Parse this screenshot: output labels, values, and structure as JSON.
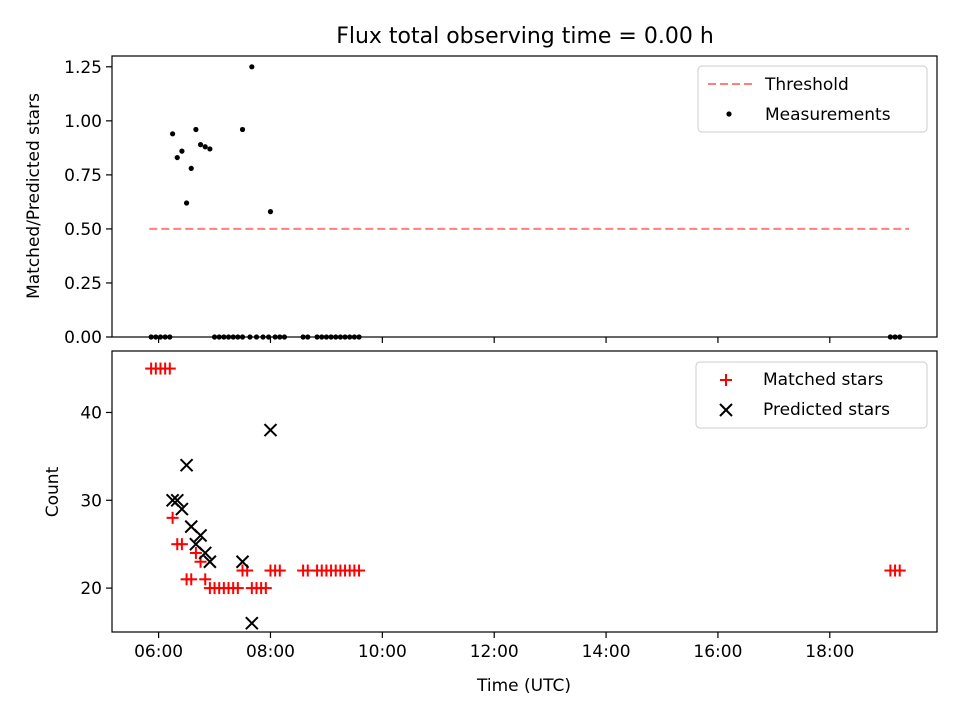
{
  "chart_data": [
    {
      "type": "scatter",
      "title": "Flux total observing time = 0.00 h",
      "xlabel": "",
      "ylabel": "Matched/Predicted stars",
      "xlim": [
        "05:10",
        "19:55"
      ],
      "ylim": [
        0,
        1.3
      ],
      "yticks": [
        "0.00",
        "0.25",
        "0.50",
        "0.75",
        "1.00",
        "1.25"
      ],
      "legend_position": "top-right",
      "series": [
        {
          "name": "Threshold",
          "kind": "line",
          "style": "dashed",
          "color": "#ff7f7f",
          "x": [
            "05:50",
            "19:25"
          ],
          "y": [
            0.5,
            0.5
          ]
        },
        {
          "name": "Measurements",
          "kind": "scatter",
          "color": "#000000",
          "points": [
            [
              "05:52",
              0
            ],
            [
              "05:57",
              0
            ],
            [
              "06:02",
              0
            ],
            [
              "06:07",
              0
            ],
            [
              "06:12",
              0
            ],
            [
              "06:15",
              0.94
            ],
            [
              "06:20",
              0.83
            ],
            [
              "06:25",
              0.86
            ],
            [
              "06:30",
              0.62
            ],
            [
              "06:35",
              0.78
            ],
            [
              "06:40",
              0.96
            ],
            [
              "06:45",
              0.89
            ],
            [
              "06:50",
              0.88
            ],
            [
              "06:55",
              0.87
            ],
            [
              "07:00",
              0
            ],
            [
              "07:05",
              0
            ],
            [
              "07:10",
              0
            ],
            [
              "07:15",
              0
            ],
            [
              "07:20",
              0
            ],
            [
              "07:25",
              0
            ],
            [
              "07:30",
              0
            ],
            [
              "07:30",
              0.96
            ],
            [
              "07:38",
              0
            ],
            [
              "07:45",
              0
            ],
            [
              "07:40",
              1.25
            ],
            [
              "07:52",
              0
            ],
            [
              "07:58",
              0
            ],
            [
              "08:00",
              0.58
            ],
            [
              "08:05",
              0
            ],
            [
              "08:10",
              0
            ],
            [
              "08:15",
              0
            ],
            [
              "08:35",
              0
            ],
            [
              "08:40",
              0
            ],
            [
              "08:50",
              0
            ],
            [
              "08:55",
              0
            ],
            [
              "09:00",
              0
            ],
            [
              "09:05",
              0
            ],
            [
              "09:10",
              0
            ],
            [
              "09:15",
              0
            ],
            [
              "09:20",
              0
            ],
            [
              "09:25",
              0
            ],
            [
              "09:30",
              0
            ],
            [
              "09:35",
              0
            ],
            [
              "19:05",
              0
            ],
            [
              "19:10",
              0
            ],
            [
              "19:15",
              0
            ]
          ]
        }
      ]
    },
    {
      "type": "scatter",
      "title": "",
      "xlabel": "Time (UTC)",
      "ylabel": "Count",
      "xlim": [
        "05:10",
        "19:55"
      ],
      "ylim": [
        15,
        47
      ],
      "xticks": [
        "06:00",
        "08:00",
        "10:00",
        "12:00",
        "14:00",
        "16:00",
        "18:00"
      ],
      "yticks": [
        "20",
        "30",
        "40"
      ],
      "legend_position": "top-right",
      "series": [
        {
          "name": "Matched stars",
          "marker": "plus",
          "color": "#ff0000",
          "points": [
            [
              "05:52",
              45
            ],
            [
              "05:57",
              45
            ],
            [
              "06:02",
              45
            ],
            [
              "06:07",
              45
            ],
            [
              "06:12",
              45
            ],
            [
              "06:15",
              28
            ],
            [
              "06:20",
              25
            ],
            [
              "06:25",
              25
            ],
            [
              "06:30",
              21
            ],
            [
              "06:35",
              21
            ],
            [
              "06:40",
              24
            ],
            [
              "06:45",
              23
            ],
            [
              "06:50",
              21
            ],
            [
              "06:55",
              20
            ],
            [
              "07:00",
              20
            ],
            [
              "07:05",
              20
            ],
            [
              "07:10",
              20
            ],
            [
              "07:15",
              20
            ],
            [
              "07:20",
              20
            ],
            [
              "07:25",
              20
            ],
            [
              "07:30",
              22
            ],
            [
              "07:35",
              22
            ],
            [
              "07:40",
              20
            ],
            [
              "07:45",
              20
            ],
            [
              "07:50",
              20
            ],
            [
              "07:55",
              20
            ],
            [
              "08:00",
              22
            ],
            [
              "08:05",
              22
            ],
            [
              "08:10",
              22
            ],
            [
              "08:35",
              22
            ],
            [
              "08:40",
              22
            ],
            [
              "08:50",
              22
            ],
            [
              "08:55",
              22
            ],
            [
              "09:00",
              22
            ],
            [
              "09:05",
              22
            ],
            [
              "09:10",
              22
            ],
            [
              "09:15",
              22
            ],
            [
              "09:20",
              22
            ],
            [
              "09:25",
              22
            ],
            [
              "09:30",
              22
            ],
            [
              "09:35",
              22
            ],
            [
              "19:05",
              22
            ],
            [
              "19:10",
              22
            ],
            [
              "19:15",
              22
            ]
          ]
        },
        {
          "name": "Predicted stars",
          "marker": "x",
          "color": "#000000",
          "points": [
            [
              "06:15",
              30
            ],
            [
              "06:20",
              30
            ],
            [
              "06:25",
              29
            ],
            [
              "06:30",
              34
            ],
            [
              "06:35",
              27
            ],
            [
              "06:40",
              25
            ],
            [
              "06:45",
              26
            ],
            [
              "06:50",
              24
            ],
            [
              "06:55",
              23
            ],
            [
              "07:30",
              23
            ],
            [
              "07:40",
              16
            ],
            [
              "08:00",
              38
            ]
          ]
        }
      ]
    }
  ]
}
